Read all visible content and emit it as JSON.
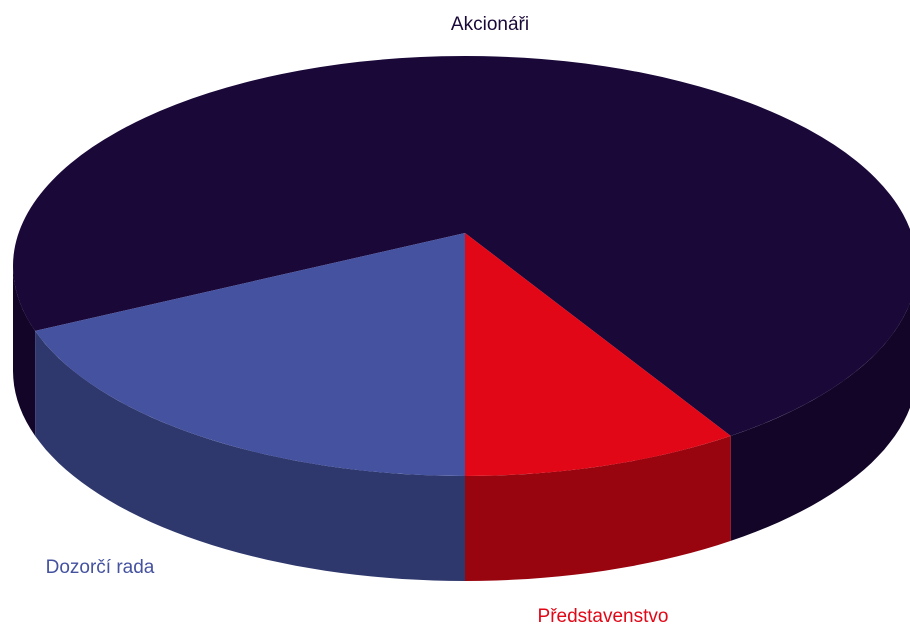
{
  "chart_data": {
    "type": "pie3d",
    "categories": [
      "Akcionáři",
      "Představenstvo",
      "Dozorčí rada"
    ],
    "values": [
      70,
      10,
      20
    ],
    "colors": [
      "#1a0839",
      "#e10716",
      "#4452a0"
    ]
  }
}
